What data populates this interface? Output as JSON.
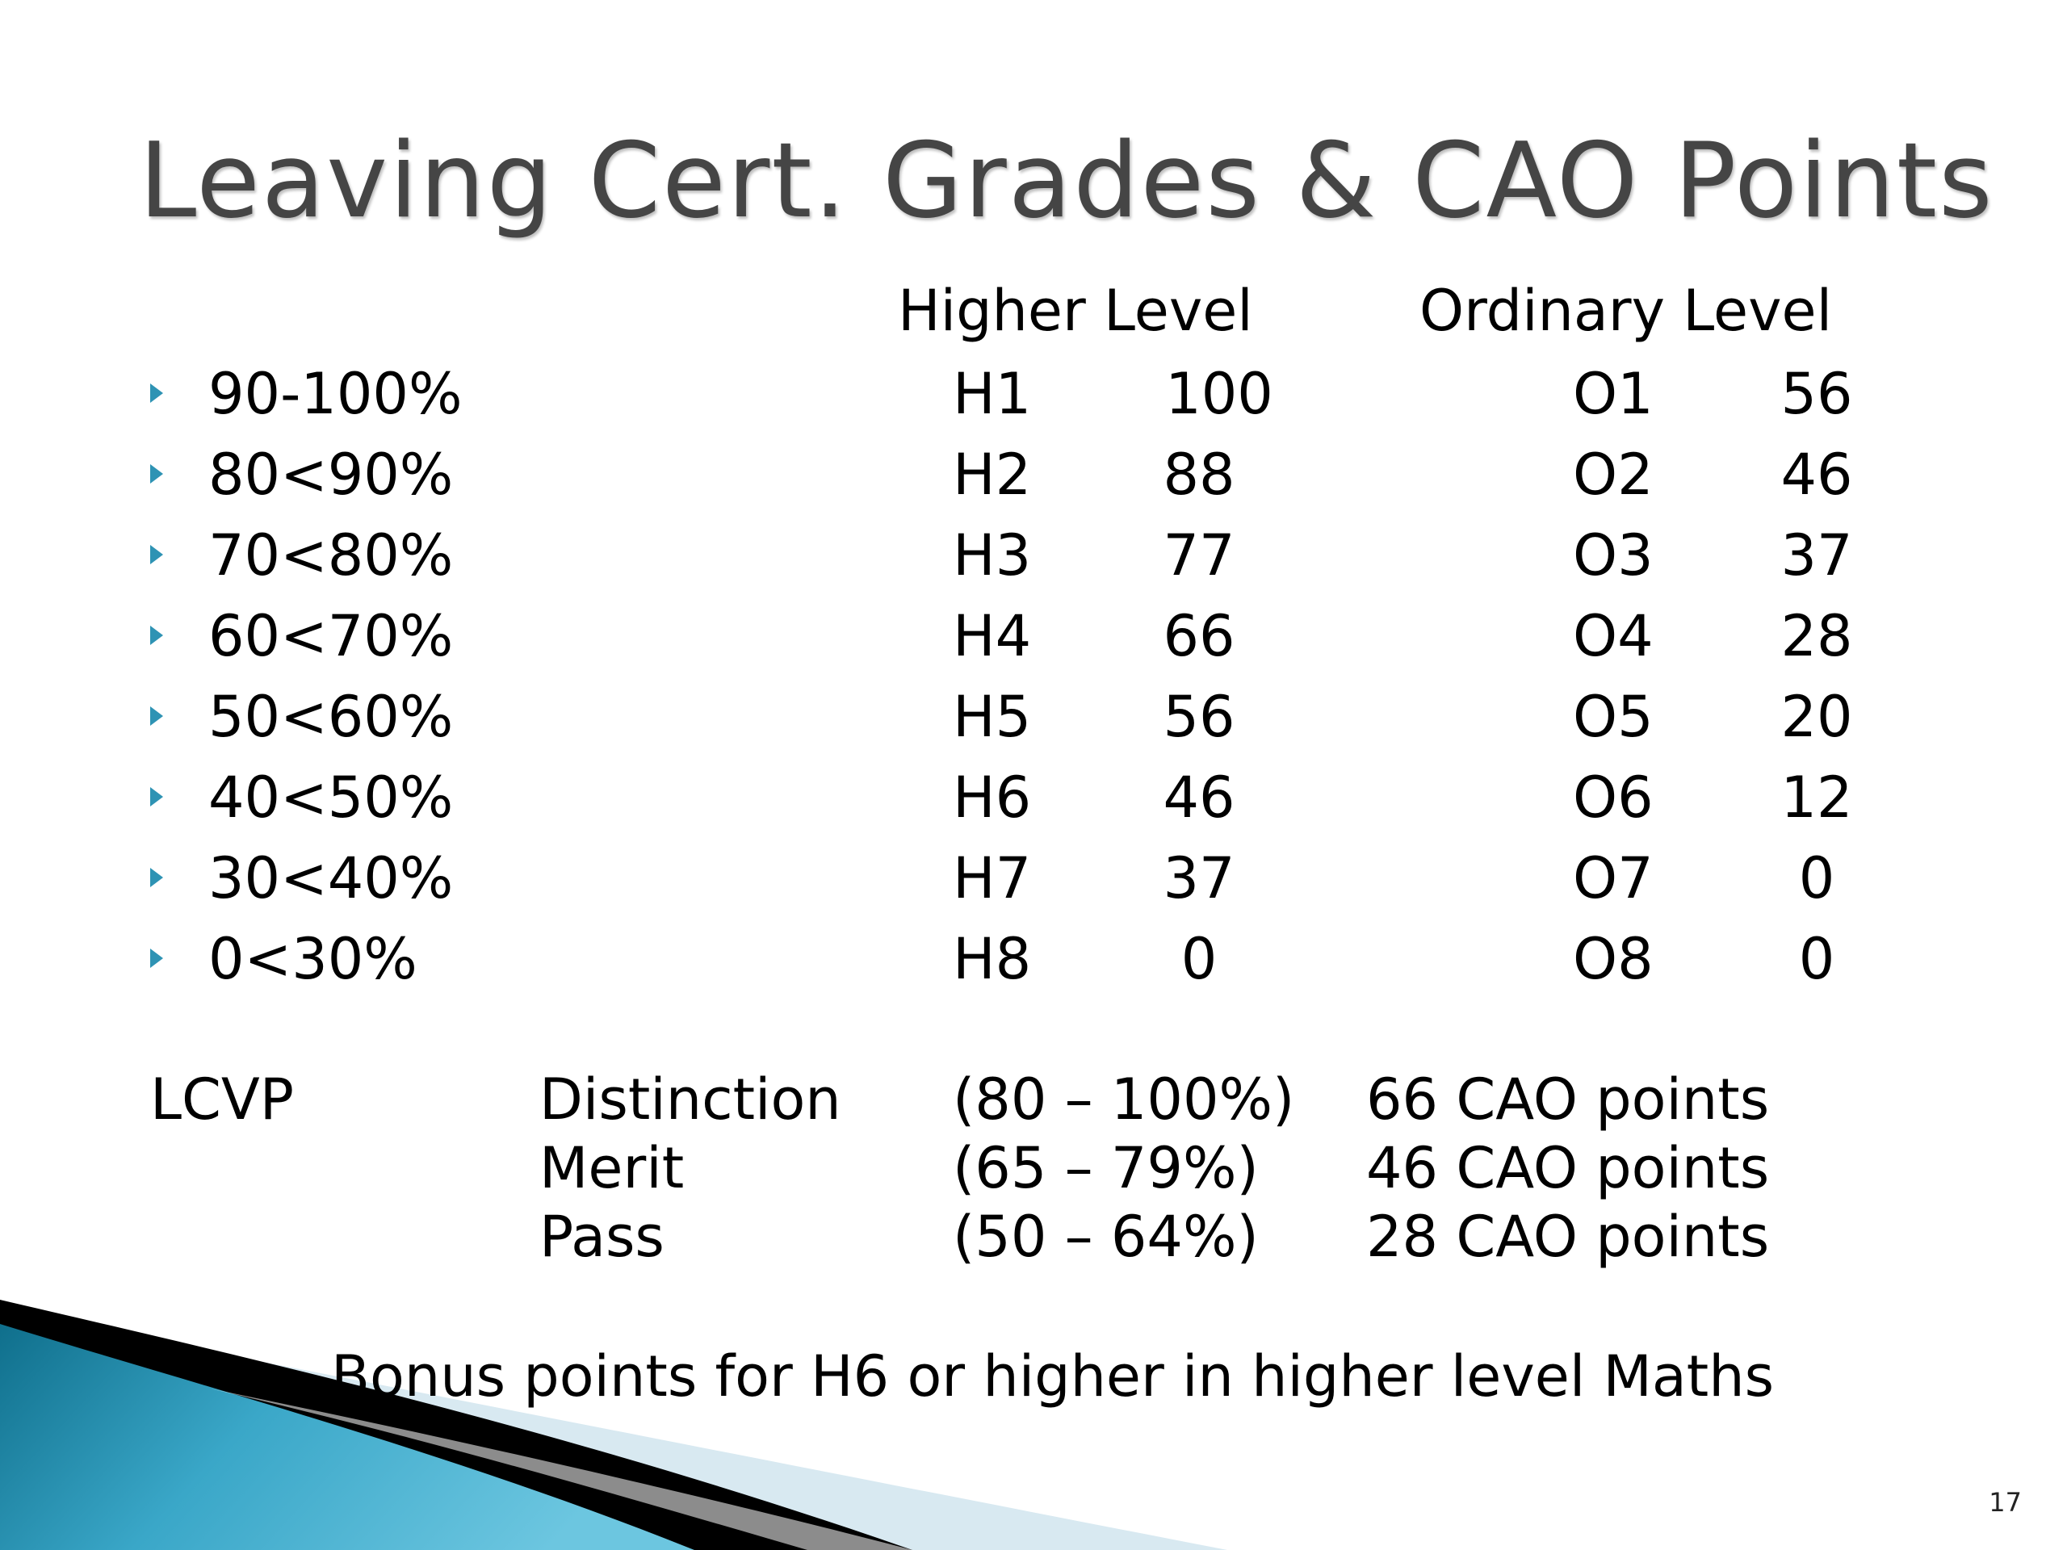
{
  "slide": {
    "title": "Leaving Cert. Grades & CAO Points",
    "headers": {
      "higher": "Higher Level",
      "ordinary": "Ordinary Level"
    },
    "rows": [
      {
        "range": "90-100%",
        "h_grade": "H1",
        "h_points": "100",
        "o_grade": "O1",
        "o_points": "56"
      },
      {
        "range": "80<90%",
        "h_grade": "H2",
        "h_points": "88",
        "o_grade": "O2",
        "o_points": "46"
      },
      {
        "range": "70<80%",
        "h_grade": "H3",
        "h_points": "77",
        "o_grade": "O3",
        "o_points": "37"
      },
      {
        "range": "60<70%",
        "h_grade": "H4",
        "h_points": "66",
        "o_grade": "O4",
        "o_points": "28"
      },
      {
        "range": "50<60%",
        "h_grade": "H5",
        "h_points": "56",
        "o_grade": "O5",
        "o_points": "20"
      },
      {
        "range": "40<50%",
        "h_grade": "H6",
        "h_points": "46",
        "o_grade": "O6",
        "o_points": "12"
      },
      {
        "range": "30<40%",
        "h_grade": "H7",
        "h_points": "37",
        "o_grade": "O7",
        "o_points": "0"
      },
      {
        "range": "0<30%",
        "h_grade": "H8",
        "h_points": "0",
        "o_grade": "O8",
        "o_points": "0"
      }
    ],
    "lcvp": {
      "label": "LCVP",
      "items": [
        {
          "grade": "Distinction",
          "range": "(80 – 100%)",
          "points": "66 CAO points"
        },
        {
          "grade": "Merit",
          "range": "(65 – 79%)",
          "points": "46 CAO points"
        },
        {
          "grade": "Pass",
          "range": "(50 – 64%)",
          "points": "28 CAO points"
        }
      ]
    },
    "bonus_note": "Bonus points for H6 or higher in higher level Maths",
    "slide_number": "17",
    "colors": {
      "title": "#454545",
      "bullet": "#2e93b4",
      "accent": "#1c7f98"
    }
  }
}
